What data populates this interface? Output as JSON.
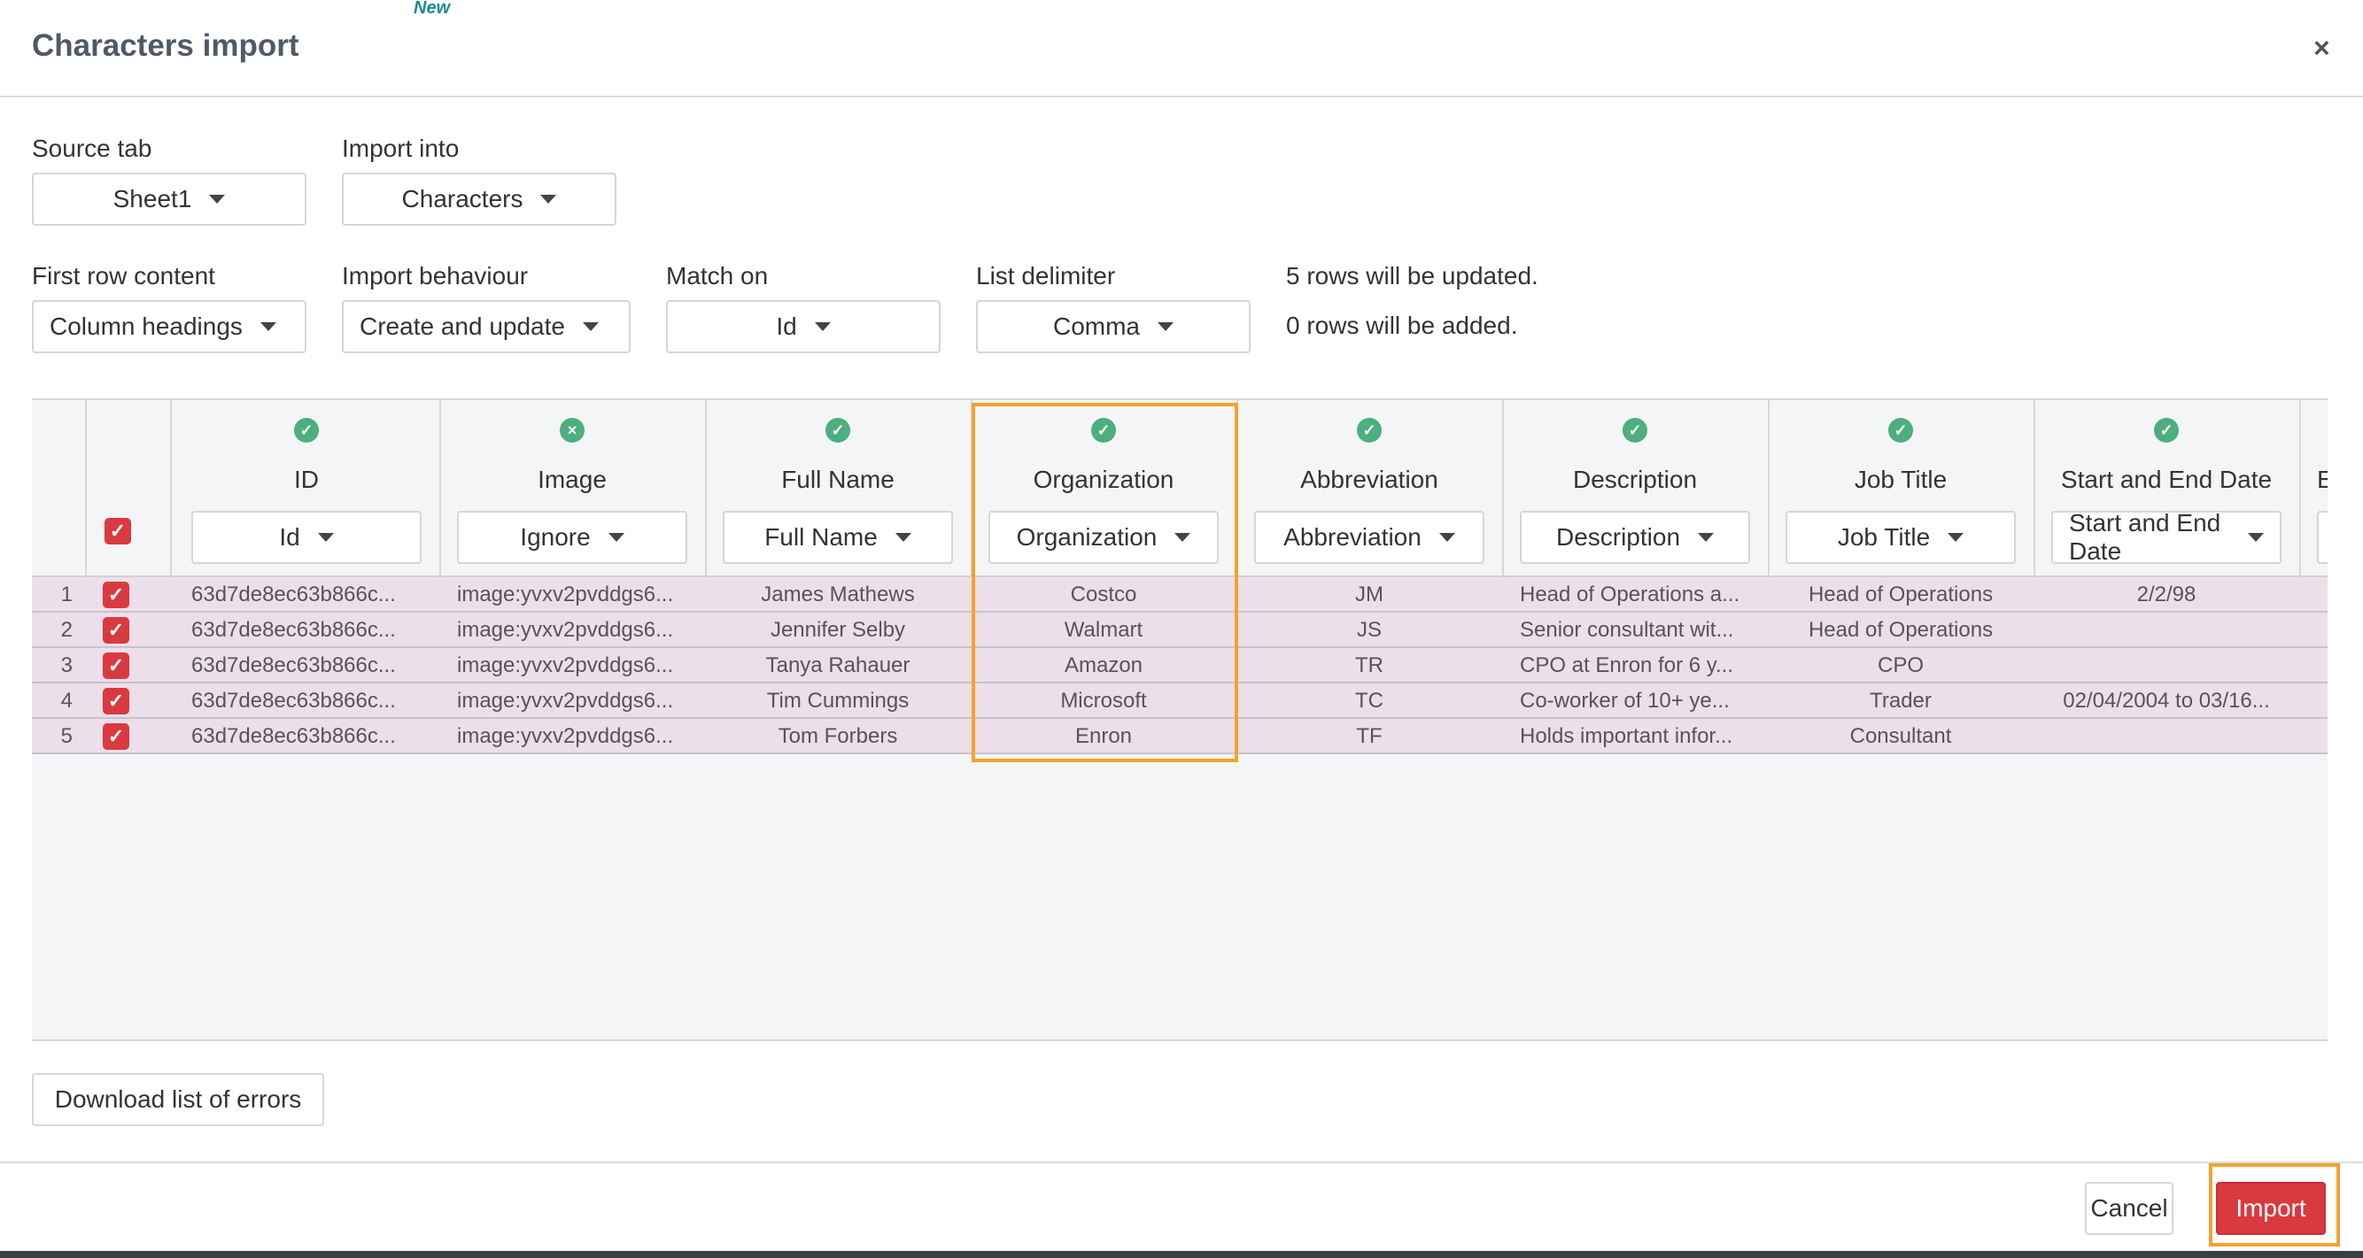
{
  "modal": {
    "new_tag": "New",
    "title": "Characters import",
    "close_glyph": "×"
  },
  "controls": {
    "source_tab": {
      "label": "Source tab",
      "value": "Sheet1"
    },
    "import_into": {
      "label": "Import into",
      "value": "Characters"
    },
    "first_row": {
      "label": "First row content",
      "value": "Column headings"
    },
    "behaviour": {
      "label": "Import behaviour",
      "value": "Create and update"
    },
    "match_on": {
      "label": "Match on",
      "value": "Id"
    },
    "delimiter": {
      "label": "List delimiter",
      "value": "Comma"
    },
    "status_updated": "5 rows will be updated.",
    "status_added": "0 rows will be added."
  },
  "columns": [
    {
      "title": "ID",
      "mapping": "Id",
      "status": "ok"
    },
    {
      "title": "Image",
      "mapping": "Ignore",
      "status": "ignored"
    },
    {
      "title": "Full Name",
      "mapping": "Full Name",
      "status": "ok"
    },
    {
      "title": "Organization",
      "mapping": "Organization",
      "status": "ok"
    },
    {
      "title": "Abbreviation",
      "mapping": "Abbreviation",
      "status": "ok"
    },
    {
      "title": "Description",
      "mapping": "Description",
      "status": "ok"
    },
    {
      "title": "Job Title",
      "mapping": "Job Title",
      "status": "ok"
    },
    {
      "title": "Start and End Date",
      "mapping": "Start and End Date",
      "status": "ok"
    },
    {
      "title": "E",
      "mapping": "",
      "status": ""
    }
  ],
  "rows": [
    {
      "num": "1",
      "cells": [
        "63d7de8ec63b866c...",
        "image:yvxv2pvddgs6...",
        "James Mathews",
        "Costco",
        "JM",
        "Head of Operations a...",
        "Head of Operations",
        "2/2/98"
      ]
    },
    {
      "num": "2",
      "cells": [
        "63d7de8ec63b866c...",
        "image:yvxv2pvddgs6...",
        "Jennifer Selby",
        "Walmart",
        "JS",
        "Senior consultant wit...",
        "Head of Operations",
        ""
      ]
    },
    {
      "num": "3",
      "cells": [
        "63d7de8ec63b866c...",
        "image:yvxv2pvddgs6...",
        "Tanya Rahauer",
        "Amazon",
        "TR",
        "CPO at Enron for 6 y...",
        "CPO",
        ""
      ]
    },
    {
      "num": "4",
      "cells": [
        "63d7de8ec63b866c...",
        "image:yvxv2pvddgs6...",
        "Tim Cummings",
        "Microsoft",
        "TC",
        "Co-worker of 10+ ye...",
        "Trader",
        "02/04/2004 to 03/16..."
      ]
    },
    {
      "num": "5",
      "cells": [
        "63d7de8ec63b866c...",
        "image:yvxv2pvddgs6...",
        "Tom Forbers",
        "Enron",
        "TF",
        "Holds important infor...",
        "Consultant",
        ""
      ]
    }
  ],
  "icons": {
    "check": "✓",
    "ignored": "×",
    "checkbox_checked": "✓"
  },
  "footer": {
    "download_errors": "Download list of errors",
    "cancel": "Cancel",
    "import": "Import"
  },
  "colors": {
    "accent_red": "#d93a40",
    "highlight_orange": "#f5a22e",
    "status_green": "#4caf7d",
    "row_tint": "#ecdfea"
  }
}
